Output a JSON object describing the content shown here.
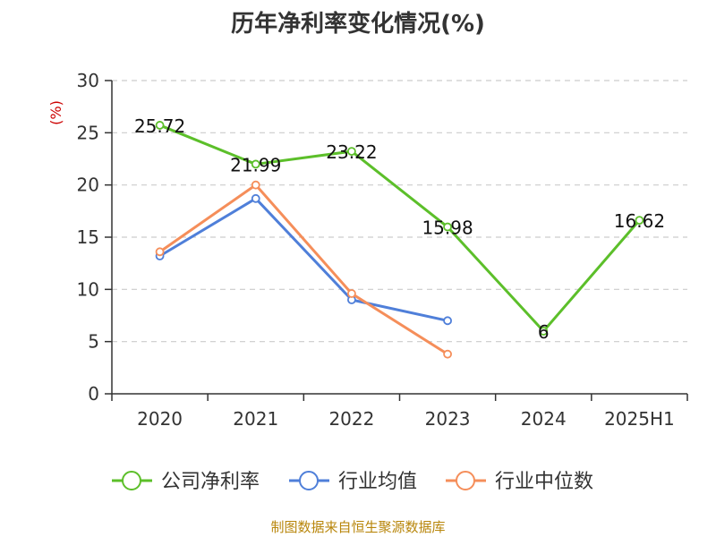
{
  "title": "历年净利率变化情况(%)",
  "source": "制图数据来自恒生聚源数据库",
  "chart_data": {
    "type": "line",
    "categories": [
      "2020",
      "2021",
      "2022",
      "2023",
      "2024",
      "2025H1"
    ],
    "ylabel": "(%)",
    "ylim": [
      0,
      30
    ],
    "yticks": [
      "0",
      "5",
      "10",
      "15",
      "20",
      "25",
      "30"
    ],
    "grid": true,
    "legend_position": "bottom",
    "series": [
      {
        "name": "公司净利率",
        "color": "#5cbf2a",
        "values": [
          25.72,
          21.99,
          23.22,
          15.98,
          6,
          16.62
        ],
        "labels": [
          "25.72",
          "21.99",
          "23.22",
          "15.98",
          "6",
          "16.62"
        ]
      },
      {
        "name": "行业均值",
        "color": "#4f7fd9",
        "values": [
          13.2,
          18.7,
          9.0,
          7.0,
          null,
          null
        ]
      },
      {
        "name": "行业中位数",
        "color": "#f58e5a",
        "values": [
          13.6,
          20.0,
          9.6,
          3.8,
          null,
          null
        ]
      }
    ],
    "unit_color": "#cc0000",
    "axis_color": "#333333",
    "grid_color": "#cccccc"
  }
}
